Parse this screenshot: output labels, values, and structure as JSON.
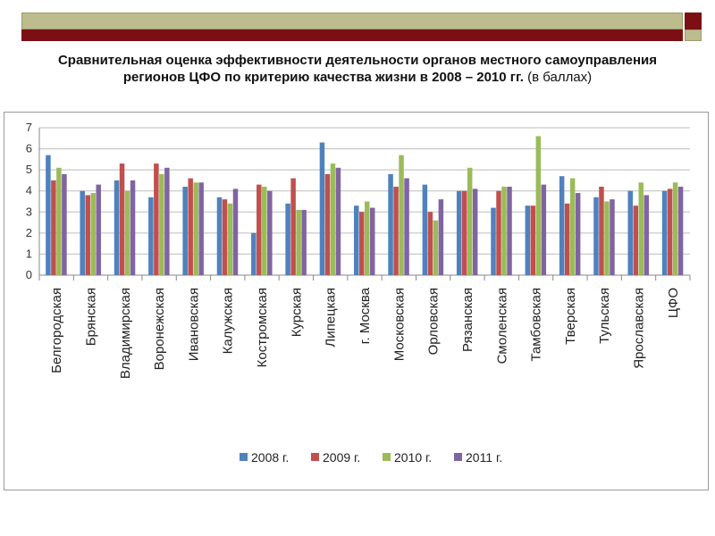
{
  "header": {
    "title_line1": "Сравнительная оценка эффективности деятельности органов местного самоуправления",
    "title_line2": "регионов ЦФО по критерию качества жизни  в 2008 – 2010 гг.",
    "title_note": "(в баллах)"
  },
  "colors": {
    "2008": "#4f81bd",
    "2009": "#c0504d",
    "2010": "#9bbb59",
    "2011": "#8064a2"
  },
  "chart_data": {
    "type": "bar",
    "title": "",
    "xlabel": "",
    "ylabel": "",
    "ylim": [
      0,
      7
    ],
    "yticks": [
      "0",
      "1",
      "2",
      "3",
      "4",
      "5",
      "6",
      "7"
    ],
    "grid": true,
    "legend_position": "bottom",
    "categories": [
      "Белгородская",
      "Брянская",
      "Владимирская",
      "Воронежская",
      "Ивановская",
      "Калужская",
      "Костромская",
      "Курская",
      "Липецкая",
      "г. Москва",
      "Московская",
      "Орловская",
      "Рязанская",
      "Смоленская",
      "Тамбовская",
      "Тверская",
      "Тульская",
      "Ярославская",
      "ЦФО"
    ],
    "series": [
      {
        "name": "2008 г.",
        "values": [
          5.7,
          4.0,
          4.5,
          3.7,
          4.2,
          3.7,
          2.0,
          3.4,
          6.3,
          3.3,
          4.8,
          4.3,
          4.0,
          3.2,
          3.3,
          4.7,
          3.7,
          4.0,
          4.0
        ]
      },
      {
        "name": "2009 г.",
        "values": [
          4.5,
          3.8,
          5.3,
          5.3,
          4.6,
          3.6,
          4.3,
          4.6,
          4.8,
          3.0,
          4.2,
          3.0,
          4.0,
          4.0,
          3.3,
          3.4,
          4.2,
          3.3,
          4.1
        ]
      },
      {
        "name": "2010 г.",
        "values": [
          5.1,
          3.9,
          4.0,
          4.8,
          4.4,
          3.4,
          4.2,
          3.1,
          5.3,
          3.5,
          5.7,
          2.6,
          5.1,
          4.2,
          6.6,
          4.6,
          3.5,
          4.4,
          4.4
        ]
      },
      {
        "name": "2011 г.",
        "values": [
          4.8,
          4.3,
          4.5,
          5.1,
          4.4,
          4.1,
          4.0,
          3.1,
          5.1,
          3.2,
          4.6,
          3.6,
          4.1,
          4.2,
          4.3,
          3.9,
          3.6,
          3.8,
          4.2
        ]
      }
    ]
  }
}
